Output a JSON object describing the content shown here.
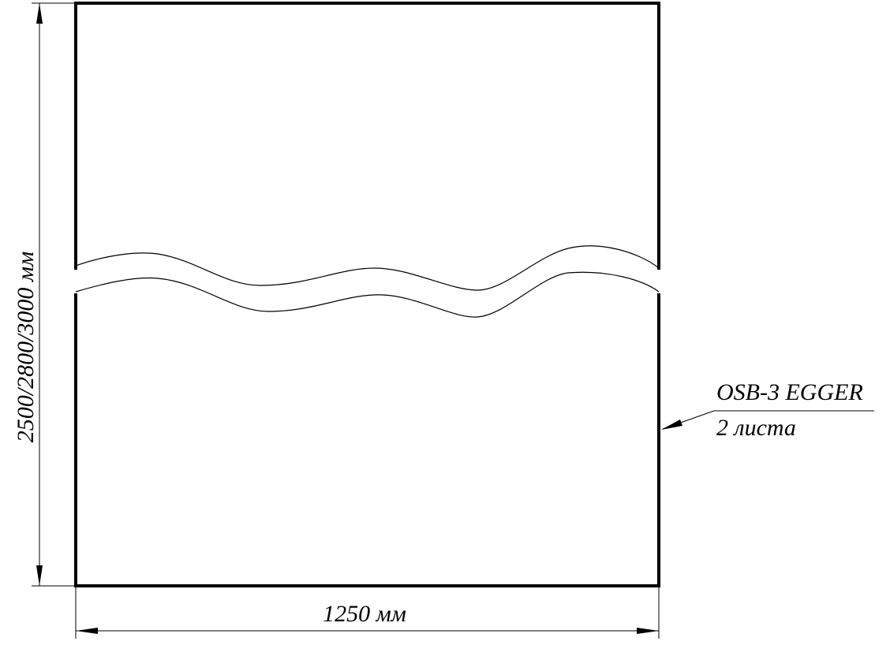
{
  "dimensions": {
    "height_label": "2500/2800/3000 мм",
    "width_label": "1250 мм"
  },
  "callout": {
    "material": "OSB-3 EGGER",
    "quantity": "2 листа"
  },
  "colors": {
    "ink": "#000000",
    "paper": "#ffffff"
  }
}
